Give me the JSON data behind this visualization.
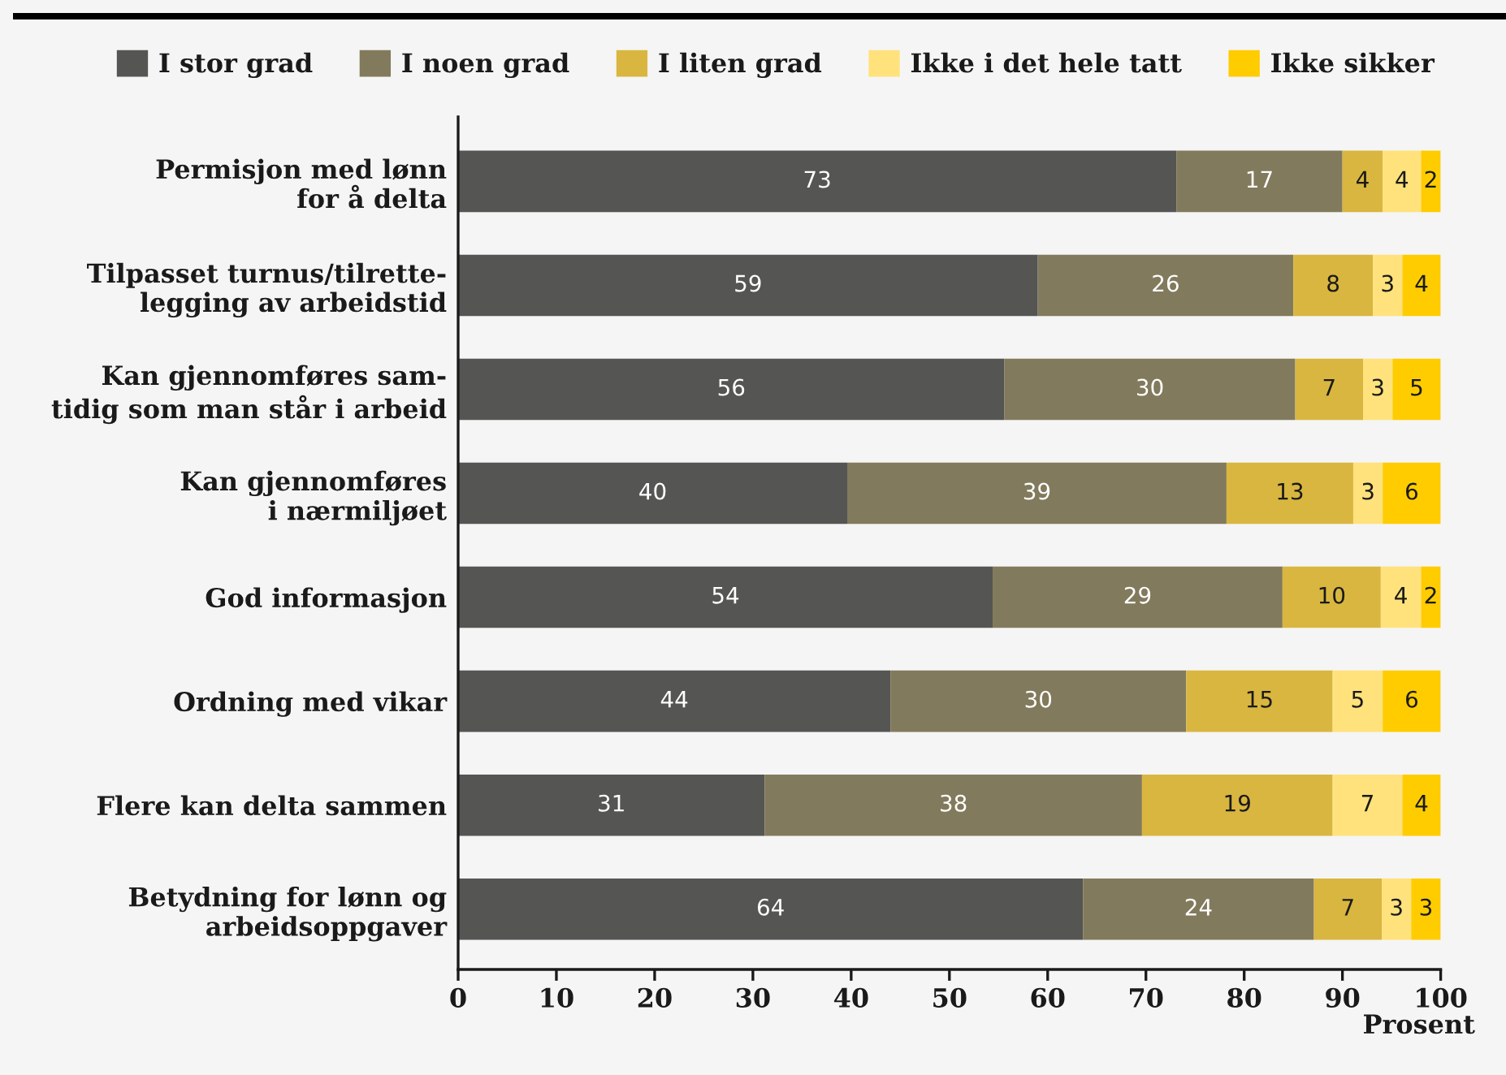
{
  "chart_data": {
    "type": "bar",
    "orientation": "horizontal",
    "stacked": true,
    "categories": [
      "Permisjon med lønn\nfor å delta",
      "Tilpasset turnus/tilrette-\nlegging av arbeidstid",
      "Kan gjennomføres sam-\ntidig som man står i arbeid",
      "Kan gjennomføres\ni nærmiljøet",
      "God informasjon",
      "Ordning med vikar",
      "Flere kan delta sammen",
      "Betydning for lønn og\narbeidsoppgaver"
    ],
    "series": [
      {
        "name": "I stor grad",
        "color": "#555553",
        "values": [
          73.1,
          59.0,
          55.6,
          39.6,
          54.4,
          44.0,
          31.2,
          63.6
        ],
        "value_labels": [
          "73",
          "59",
          "56",
          "40",
          "54",
          "44",
          "31",
          "64"
        ]
      },
      {
        "name": "I noen grad",
        "color": "#827a5c",
        "values": [
          16.9,
          26.0,
          29.6,
          38.6,
          29.5,
          30.1,
          38.4,
          23.5
        ],
        "value_labels": [
          "17",
          "26",
          "30",
          "39",
          "29",
          "30",
          "38",
          "24"
        ]
      },
      {
        "name": "I liten grad",
        "color": "#d9b63f",
        "values": [
          4.1,
          8.1,
          6.9,
          12.9,
          10.0,
          14.9,
          19.4,
          6.9
        ],
        "value_labels": [
          "4",
          "8",
          "7",
          "13",
          "10",
          "15",
          "19",
          "7"
        ]
      },
      {
        "name": "Ikke i det hele tatt",
        "color": "#ffe27b",
        "values": [
          3.9,
          3.0,
          3.0,
          3.0,
          4.1,
          5.1,
          7.1,
          3.0
        ],
        "value_labels": [
          "4",
          "3",
          "3",
          "3",
          "4",
          "5",
          "7",
          "3"
        ]
      },
      {
        "name": "Ikke sikker",
        "color": "#ffcc00",
        "values": [
          2.0,
          3.9,
          4.9,
          5.9,
          2.0,
          5.9,
          3.9,
          3.0
        ],
        "value_labels": [
          "2",
          "4",
          "5",
          "6",
          "2",
          "6",
          "4",
          "3"
        ]
      }
    ],
    "xlabel": "Prosent",
    "xlim": [
      0,
      100
    ],
    "xticks": [
      0,
      10,
      20,
      30,
      40,
      50,
      60,
      70,
      80,
      90,
      100
    ],
    "legend": "top",
    "grid": false
  }
}
